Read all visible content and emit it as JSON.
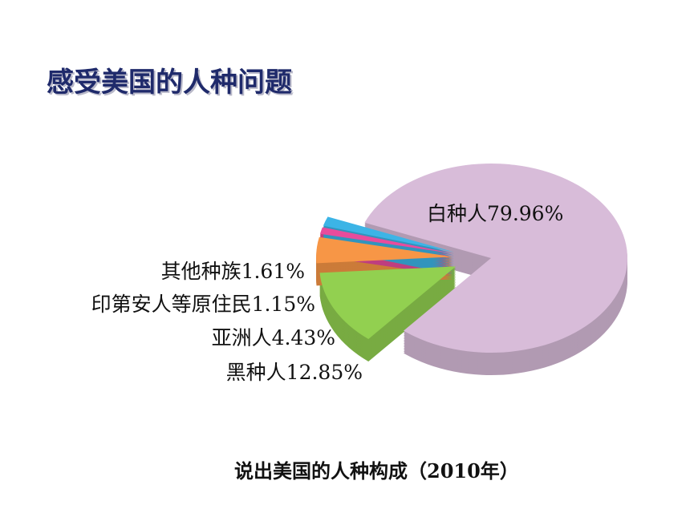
{
  "chart_data": {
    "type": "pie",
    "title": "感受美国的人种问题",
    "caption": "说出美国的人种构成（2010年）",
    "categories": [
      "白种人",
      "黑种人",
      "亚洲人",
      "印第安人等原住民",
      "其他种族"
    ],
    "values": [
      79.96,
      12.85,
      4.43,
      1.15,
      1.61
    ],
    "value_labels": [
      "79.96%",
      "12.85%",
      "4.43%",
      "1.15%",
      "1.61%"
    ],
    "colors": [
      "#d8bcd9",
      "#92d050",
      "#f79646",
      "#e84c9c",
      "#3cb4e6"
    ]
  }
}
